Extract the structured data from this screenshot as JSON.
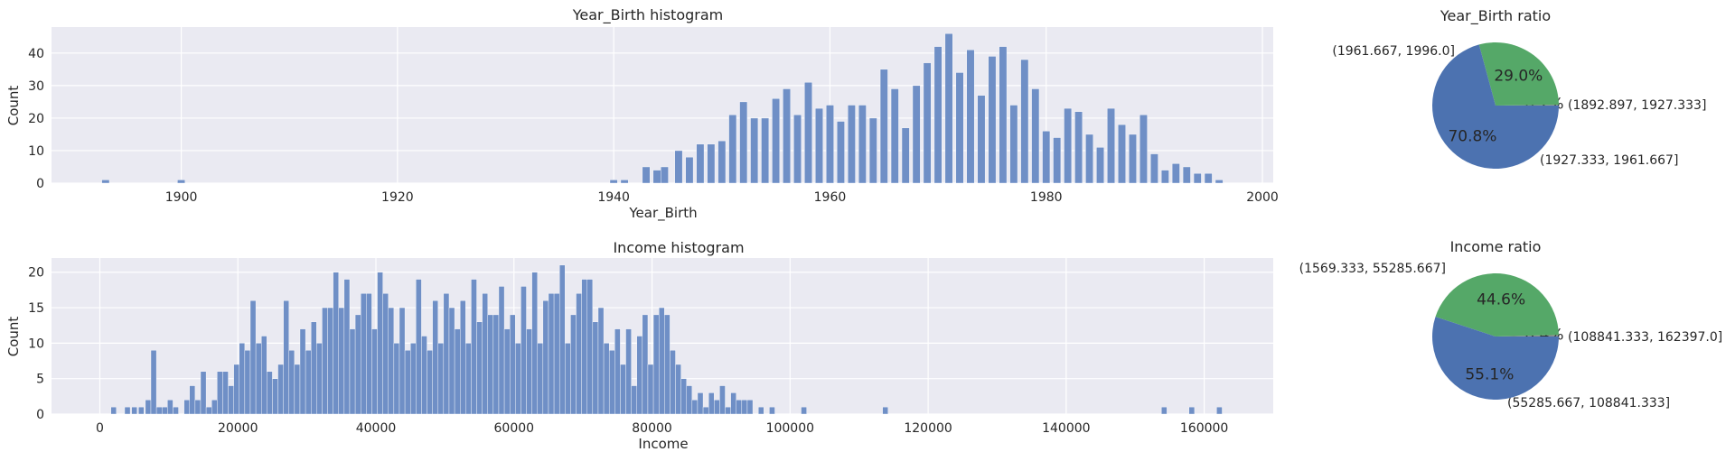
{
  "chart_data": [
    {
      "type": "bar",
      "id": "year",
      "title": "Year_Birth histogram",
      "xlabel": "Year_Birth",
      "ylabel": "Count",
      "xlim": [
        1888,
        2001
      ],
      "ylim": [
        0,
        48
      ],
      "xticks": [
        1900,
        1920,
        1940,
        1960,
        1980,
        2000
      ],
      "yticks": [
        0,
        10,
        20,
        30,
        40
      ],
      "bin_width": 0.7,
      "bins": [
        [
          1893,
          1
        ],
        [
          1900,
          1
        ],
        [
          1940,
          1
        ],
        [
          1941,
          1
        ],
        [
          1943,
          5
        ],
        [
          1944,
          4
        ],
        [
          1944.7,
          5
        ],
        [
          1946,
          10
        ],
        [
          1947,
          8
        ],
        [
          1948,
          12
        ],
        [
          1949,
          12
        ],
        [
          1950,
          13
        ],
        [
          1951,
          21
        ],
        [
          1952,
          25
        ],
        [
          1953,
          20
        ],
        [
          1954,
          20
        ],
        [
          1955,
          26
        ],
        [
          1956,
          29
        ],
        [
          1957,
          21
        ],
        [
          1958,
          31
        ],
        [
          1959,
          23
        ],
        [
          1960,
          24
        ],
        [
          1961,
          19
        ],
        [
          1962,
          24
        ],
        [
          1963,
          24
        ],
        [
          1964,
          20
        ],
        [
          1965,
          35
        ],
        [
          1966,
          29
        ],
        [
          1967,
          17
        ],
        [
          1968,
          30
        ],
        [
          1969,
          37
        ],
        [
          1970,
          42
        ],
        [
          1971,
          46
        ],
        [
          1972,
          34
        ],
        [
          1973,
          41
        ],
        [
          1974,
          27
        ],
        [
          1975,
          39
        ],
        [
          1976,
          42
        ],
        [
          1977,
          24
        ],
        [
          1978,
          38
        ],
        [
          1979,
          29
        ],
        [
          1980,
          16
        ],
        [
          1981,
          14
        ],
        [
          1982,
          23
        ],
        [
          1983,
          22
        ],
        [
          1984,
          15
        ],
        [
          1985,
          11
        ],
        [
          1986,
          23
        ],
        [
          1987,
          18
        ],
        [
          1988,
          15
        ],
        [
          1989,
          21
        ],
        [
          1990,
          9
        ],
        [
          1991,
          4
        ],
        [
          1992,
          6
        ],
        [
          1993,
          5
        ],
        [
          1994,
          3
        ],
        [
          1995,
          3
        ],
        [
          1996,
          1
        ]
      ]
    },
    {
      "type": "pie",
      "id": "year_pie",
      "title": "Year_Birth ratio",
      "slices": [
        {
          "label": "(1892.897, 1927.333]",
          "value": 0.2,
          "pct": "0.2%",
          "color": "#8c8c8c"
        },
        {
          "label": "(1927.333, 1961.667]",
          "value": 29.0,
          "pct": "29.0%",
          "color": "#55a868"
        },
        {
          "label": "(1961.667, 1996.0]",
          "value": 70.8,
          "pct": "70.8%",
          "color": "#4c72b0"
        }
      ]
    },
    {
      "type": "bar",
      "id": "income",
      "title": "Income histogram",
      "xlabel": "Income",
      "ylabel": "Count",
      "xlim": [
        -7000,
        170000
      ],
      "ylim": [
        0,
        22
      ],
      "xticks": [
        0,
        20000,
        40000,
        60000,
        80000,
        100000,
        120000,
        140000,
        160000
      ],
      "yticks": [
        0,
        5,
        10,
        15,
        20
      ],
      "bin_width": 800,
      "bins": [
        [
          2000,
          1
        ],
        [
          4000,
          1
        ],
        [
          5000,
          1
        ],
        [
          6000,
          1
        ],
        [
          7000,
          2
        ],
        [
          7800,
          9
        ],
        [
          8600,
          1
        ],
        [
          9400,
          1
        ],
        [
          10200,
          2
        ],
        [
          11000,
          1
        ],
        [
          12600,
          2
        ],
        [
          13400,
          4
        ],
        [
          14200,
          2
        ],
        [
          15000,
          6
        ],
        [
          15800,
          1
        ],
        [
          16600,
          2
        ],
        [
          17400,
          6
        ],
        [
          18200,
          6
        ],
        [
          19000,
          4
        ],
        [
          19800,
          7
        ],
        [
          20600,
          10
        ],
        [
          21400,
          9
        ],
        [
          22200,
          16
        ],
        [
          23000,
          10
        ],
        [
          23800,
          11
        ],
        [
          24600,
          6
        ],
        [
          25400,
          5
        ],
        [
          26200,
          7
        ],
        [
          27000,
          16
        ],
        [
          27800,
          9
        ],
        [
          28600,
          7
        ],
        [
          29400,
          12
        ],
        [
          30200,
          9
        ],
        [
          31000,
          13
        ],
        [
          31800,
          10
        ],
        [
          32600,
          15
        ],
        [
          33400,
          15
        ],
        [
          34200,
          20
        ],
        [
          35000,
          15
        ],
        [
          35800,
          19
        ],
        [
          36600,
          12
        ],
        [
          37400,
          14
        ],
        [
          38200,
          17
        ],
        [
          39000,
          17
        ],
        [
          39800,
          12
        ],
        [
          40600,
          20
        ],
        [
          41400,
          17
        ],
        [
          42200,
          15
        ],
        [
          43000,
          10
        ],
        [
          43800,
          15
        ],
        [
          44600,
          9
        ],
        [
          45400,
          10
        ],
        [
          46200,
          19
        ],
        [
          47000,
          11
        ],
        [
          47800,
          9
        ],
        [
          48600,
          16
        ],
        [
          49400,
          10
        ],
        [
          50200,
          17
        ],
        [
          51000,
          15
        ],
        [
          51800,
          12
        ],
        [
          52600,
          16
        ],
        [
          53400,
          10
        ],
        [
          54200,
          19
        ],
        [
          55000,
          13
        ],
        [
          55800,
          17
        ],
        [
          56600,
          14
        ],
        [
          57400,
          14
        ],
        [
          58200,
          18
        ],
        [
          59000,
          12
        ],
        [
          59800,
          14
        ],
        [
          60600,
          10
        ],
        [
          61400,
          18
        ],
        [
          62200,
          12
        ],
        [
          63000,
          20
        ],
        [
          63800,
          10
        ],
        [
          64600,
          16
        ],
        [
          65400,
          17
        ],
        [
          66200,
          17
        ],
        [
          67000,
          21
        ],
        [
          67800,
          10
        ],
        [
          68600,
          14
        ],
        [
          69400,
          17
        ],
        [
          70200,
          19
        ],
        [
          71000,
          19
        ],
        [
          71800,
          13
        ],
        [
          72600,
          15
        ],
        [
          73400,
          10
        ],
        [
          74200,
          9
        ],
        [
          75000,
          12
        ],
        [
          75800,
          7
        ],
        [
          76600,
          12
        ],
        [
          77400,
          4
        ],
        [
          78200,
          11
        ],
        [
          79000,
          14
        ],
        [
          79800,
          7
        ],
        [
          80600,
          14
        ],
        [
          81400,
          15
        ],
        [
          82200,
          14
        ],
        [
          83000,
          9
        ],
        [
          83800,
          7
        ],
        [
          84600,
          5
        ],
        [
          85400,
          4
        ],
        [
          86200,
          2
        ],
        [
          87000,
          3
        ],
        [
          87800,
          1
        ],
        [
          88600,
          3
        ],
        [
          89400,
          2
        ],
        [
          90200,
          4
        ],
        [
          91000,
          1
        ],
        [
          91800,
          3
        ],
        [
          92600,
          2
        ],
        [
          93400,
          2
        ],
        [
          94200,
          2
        ],
        [
          95800,
          1
        ],
        [
          97400,
          1
        ],
        [
          102000,
          1
        ],
        [
          113800,
          1
        ],
        [
          154200,
          1
        ],
        [
          158200,
          1
        ],
        [
          162200,
          1
        ]
      ]
    },
    {
      "type": "pie",
      "id": "income_pie",
      "title": "Income ratio",
      "slices": [
        {
          "label": "(108841.333, 162397.0]",
          "value": 0.4,
          "pct": "0.4%",
          "color": "#8c8c8c"
        },
        {
          "label": "(55285.667, 108841.333]",
          "value": 44.6,
          "pct": "44.6%",
          "color": "#55a868"
        },
        {
          "label": "(1569.333, 55285.667]",
          "value": 55.1,
          "pct": "55.1%",
          "color": "#4c72b0"
        }
      ]
    }
  ]
}
